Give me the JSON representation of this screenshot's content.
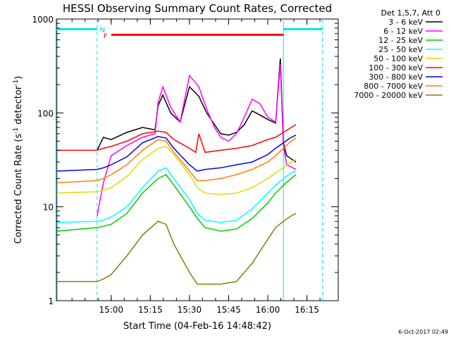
{
  "chart_data": {
    "type": "line",
    "title": "HESSI Observing Summary Count Rates, Corrected",
    "xlabel": "Start Time (04-Feb-16 14:48:42)",
    "ylabel": "Corrected Count Rate (s",
    "ylabel_sup1": "-1",
    "ylabel_mid": " detector",
    "ylabel_sup2": "-1",
    "ylabel_end": ")",
    "y_scale": "log",
    "ylim": [
      1,
      1000
    ],
    "xlim": [
      14.65,
      16.45
    ],
    "x_ticks": [
      {
        "v": 15.0,
        "label": "15:00"
      },
      {
        "v": 15.25,
        "label": "15:15"
      },
      {
        "v": 15.5,
        "label": "15:30"
      },
      {
        "v": 15.75,
        "label": "15:45"
      },
      {
        "v": 16.0,
        "label": "16:00"
      },
      {
        "v": 16.25,
        "label": "16:15"
      }
    ],
    "y_ticks": [
      {
        "v": 1,
        "label": "1"
      },
      {
        "v": 10,
        "label": "10"
      },
      {
        "v": 100,
        "label": "100"
      },
      {
        "v": 1000,
        "label": "1000"
      }
    ],
    "legend_title": "Det 1,5,7, Att 0",
    "legend_position": "right",
    "annotations": {
      "F": "F",
      "N": "N"
    },
    "flare_bar": {
      "x": [
        15.0,
        16.1
      ],
      "y": 680,
      "color": "#ff0000"
    },
    "night_bars": [
      {
        "x": [
          14.65,
          14.91
        ],
        "y": 780
      },
      {
        "x": [
          16.1,
          16.35
        ],
        "y": 780
      }
    ],
    "vlines": [
      {
        "x": 14.655,
        "style": "solid"
      },
      {
        "x": 14.91,
        "style": "dashed"
      },
      {
        "x": 16.1,
        "style": "solid"
      },
      {
        "x": 16.35,
        "style": "dashed"
      }
    ],
    "series": [
      {
        "name": "3 - 6 keV",
        "color": "#000000",
        "x": [
          14.91,
          14.95,
          15.0,
          15.1,
          15.2,
          15.28,
          15.3,
          15.33,
          15.38,
          15.44,
          15.5,
          15.56,
          15.61,
          15.66,
          15.7,
          15.75,
          15.8,
          15.85,
          15.9,
          15.95,
          16.0,
          16.05,
          16.08,
          16.1,
          16.12,
          16.18
        ],
        "y": [
          40,
          55,
          52,
          62,
          70,
          66,
          120,
          155,
          100,
          80,
          190,
          150,
          100,
          75,
          60,
          58,
          62,
          75,
          105,
          95,
          85,
          78,
          380,
          48,
          35,
          30
        ]
      },
      {
        "name": "6 - 12 keV",
        "color": "#ff00ff",
        "x": [
          14.91,
          14.95,
          15.0,
          15.1,
          15.2,
          15.28,
          15.3,
          15.33,
          15.38,
          15.44,
          15.5,
          15.56,
          15.61,
          15.66,
          15.7,
          15.75,
          15.8,
          15.85,
          15.9,
          15.95,
          16.0,
          16.05,
          16.08,
          16.1,
          16.12,
          16.18
        ],
        "y": [
          8,
          18,
          35,
          45,
          55,
          60,
          130,
          190,
          115,
          80,
          250,
          190,
          110,
          70,
          55,
          50,
          60,
          90,
          140,
          125,
          90,
          80,
          330,
          45,
          28,
          25
        ]
      },
      {
        "name": "12 - 25 keV",
        "color": "#00cc00",
        "x": [
          14.655,
          14.91,
          14.95,
          15.0,
          15.1,
          15.2,
          15.3,
          15.35,
          15.4,
          15.5,
          15.55,
          15.6,
          15.7,
          15.8,
          15.9,
          16.0,
          16.05,
          16.1,
          16.15,
          16.18
        ],
        "y": [
          5.5,
          6.0,
          6.2,
          6.5,
          8.5,
          14,
          20,
          22,
          17,
          10,
          7.5,
          6.0,
          5.5,
          5.8,
          7.5,
          11,
          14,
          17,
          20,
          22
        ]
      },
      {
        "name": "25 - 50 keV",
        "color": "#00ffff",
        "x": [
          14.655,
          14.91,
          14.95,
          15.0,
          15.1,
          15.2,
          15.3,
          15.35,
          15.4,
          15.5,
          15.55,
          15.6,
          15.7,
          15.8,
          15.9,
          16.0,
          16.05,
          16.1,
          16.15,
          16.18
        ],
        "y": [
          6.8,
          7.0,
          7.2,
          7.8,
          10,
          16,
          24,
          26,
          20,
          12,
          8.5,
          7.2,
          6.8,
          7.2,
          9.5,
          14,
          17,
          20,
          23,
          24
        ]
      },
      {
        "name": "50 - 100 keV",
        "color": "#dddd00",
        "x": [
          14.655,
          14.91,
          14.95,
          15.0,
          15.1,
          15.2,
          15.3,
          15.35,
          15.4,
          15.5,
          15.55,
          15.6,
          15.7,
          15.8,
          15.9,
          16.0,
          16.05,
          16.1,
          16.15,
          16.18
        ],
        "y": [
          14,
          14.5,
          15,
          16,
          21,
          32,
          42,
          44,
          36,
          22,
          16,
          14,
          13.5,
          14,
          16,
          20,
          23,
          26,
          30,
          32
        ]
      },
      {
        "name": "100 - 300 keV",
        "color": "#ff0000",
        "x": [
          14.655,
          14.91,
          14.95,
          15.0,
          15.1,
          15.2,
          15.3,
          15.35,
          15.4,
          15.5,
          15.54,
          15.56,
          15.6,
          15.7,
          15.8,
          15.9,
          16.0,
          16.05,
          16.1,
          16.15,
          16.18
        ],
        "y": [
          40,
          40,
          42,
          44,
          50,
          60,
          64,
          62,
          52,
          42,
          38,
          60,
          38,
          40,
          42,
          45,
          52,
          55,
          62,
          70,
          75
        ]
      },
      {
        "name": "300 - 800 keV",
        "color": "#0000ee",
        "x": [
          14.655,
          14.91,
          14.95,
          15.0,
          15.1,
          15.2,
          15.3,
          15.35,
          15.4,
          15.5,
          15.55,
          15.6,
          15.7,
          15.8,
          15.9,
          16.0,
          16.05,
          16.1,
          16.15,
          16.18
        ],
        "y": [
          24,
          25,
          26,
          28,
          34,
          48,
          56,
          54,
          42,
          28,
          24,
          25,
          26,
          28,
          30,
          36,
          42,
          48,
          55,
          58
        ]
      },
      {
        "name": "800 - 7000 keV",
        "color": "#ff8000",
        "x": [
          14.655,
          14.91,
          14.95,
          15.0,
          15.1,
          15.2,
          15.3,
          15.35,
          15.4,
          15.5,
          15.55,
          15.6,
          15.7,
          15.8,
          15.9,
          16.0,
          16.05,
          16.1,
          16.15,
          16.18
        ],
        "y": [
          18,
          19,
          20,
          22,
          28,
          40,
          52,
          50,
          38,
          24,
          19,
          19,
          20,
          22,
          25,
          30,
          35,
          42,
          50,
          54
        ]
      },
      {
        "name": "7000 - 20000 keV",
        "color": "#808000",
        "x": [
          14.655,
          14.91,
          14.95,
          15.0,
          15.1,
          15.2,
          15.3,
          15.35,
          15.4,
          15.5,
          15.55,
          15.6,
          15.7,
          15.8,
          15.9,
          16.0,
          16.05,
          16.1,
          16.15,
          16.18
        ],
        "y": [
          1.6,
          1.6,
          1.7,
          1.9,
          3.0,
          5.0,
          7.0,
          6.5,
          4.0,
          2.0,
          1.5,
          1.5,
          1.5,
          1.6,
          2.5,
          4.5,
          6.0,
          7.0,
          8.0,
          8.5
        ]
      }
    ]
  },
  "footer": {
    "timestamp": "6-Oct-2017 02:49"
  }
}
